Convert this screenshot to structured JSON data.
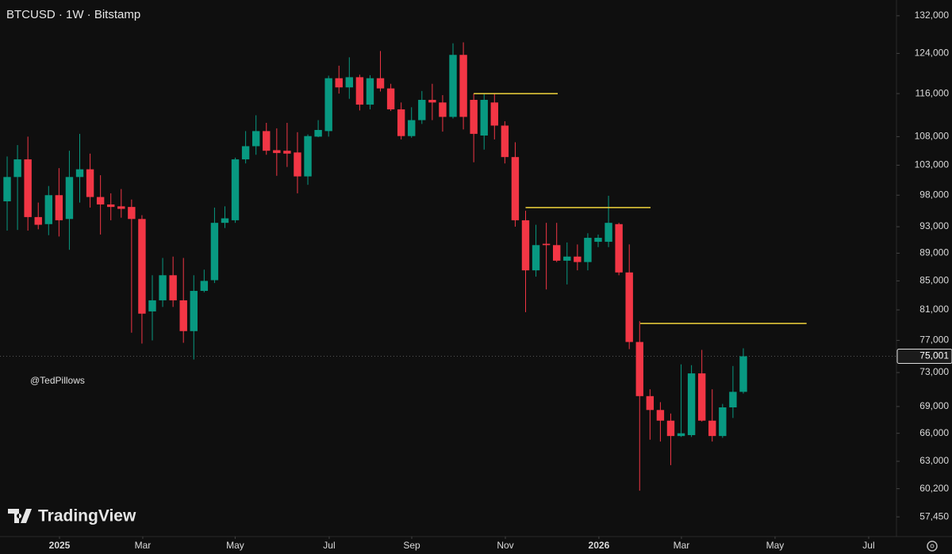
{
  "chart_data": {
    "type": "candlestick",
    "title": "BTCUSD · 1W · Bitstamp",
    "author": "@TedPillows",
    "logo_text": "TradingView",
    "log_scale": true,
    "up_color": "#089981",
    "down_color": "#f23645",
    "level_color": "#f0d43c",
    "categories": [
      null,
      null,
      null,
      null,
      null,
      null,
      null,
      null,
      null,
      null,
      null,
      null,
      null,
      null,
      null,
      null,
      null,
      null,
      null,
      null,
      null,
      null,
      null,
      null,
      null,
      null,
      null,
      null,
      null,
      null,
      null,
      null,
      null,
      null,
      null,
      null,
      null,
      null,
      null,
      null,
      null,
      null,
      null,
      null,
      null,
      null,
      null,
      null,
      null,
      null,
      null,
      null,
      null,
      null,
      null,
      null,
      null,
      null,
      null,
      null,
      null,
      null,
      null,
      null,
      null,
      null,
      null,
      null,
      null,
      null,
      null,
      null
    ],
    "open": [
      97000,
      101000,
      104000,
      94500,
      93400,
      98000,
      94200,
      101000,
      102300,
      97700,
      96500,
      96200,
      96100,
      94200,
      80800,
      82300,
      85800,
      82300,
      78200,
      83600,
      85100,
      93600,
      94000,
      104000,
      106300,
      109000,
      105600,
      105500,
      105200,
      101100,
      108000,
      109000,
      119000,
      117200,
      119200,
      113900,
      119000,
      117000,
      113000,
      108100,
      111000,
      114800,
      114300,
      111600,
      123700,
      114800,
      108200,
      114300,
      110000,
      104400,
      94000,
      86500,
      90400,
      90200,
      87900,
      88500,
      87700,
      90700,
      90700,
      93400,
      86200,
      76800,
      70200,
      68600,
      67400,
      65700,
      65800,
      72900,
      67400,
      65700,
      68900,
      70700
    ],
    "high": [
      104500,
      106500,
      108000,
      96800,
      99500,
      102500,
      105500,
      108500,
      105000,
      101300,
      98300,
      99000,
      97300,
      94800,
      85800,
      88300,
      88500,
      88300,
      85800,
      86600,
      96000,
      96200,
      104300,
      109000,
      111900,
      110500,
      109500,
      110500,
      108800,
      108400,
      111000,
      119500,
      121500,
      123200,
      119700,
      119600,
      124500,
      117900,
      114300,
      113400,
      116500,
      117900,
      115700,
      126100,
      126300,
      116000,
      116000,
      116000,
      110800,
      107000,
      95500,
      93300,
      93600,
      93600,
      90600,
      90300,
      92000,
      91800,
      97900,
      93600,
      90300,
      79500,
      71000,
      69500,
      68200,
      74000,
      73900,
      75800,
      71000,
      69300,
      73800,
      76000
    ],
    "low": [
      92400,
      92500,
      92400,
      92600,
      91700,
      91500,
      89500,
      96800,
      96000,
      91800,
      94000,
      94400,
      78000,
      76600,
      77000,
      81400,
      81400,
      76700,
      74600,
      83400,
      84700,
      92800,
      93600,
      103300,
      104800,
      104800,
      101200,
      102700,
      98300,
      99700,
      107900,
      108000,
      116000,
      115000,
      112800,
      113000,
      116400,
      112700,
      107500,
      107800,
      110300,
      111000,
      108900,
      111300,
      109300,
      103500,
      105700,
      107500,
      103300,
      93000,
      80700,
      85600,
      83800,
      87700,
      84500,
      86500,
      86500,
      89900,
      89900,
      85800,
      75900,
      60000,
      65300,
      65100,
      62600,
      65600,
      65600,
      67300,
      65100,
      65500,
      67700,
      70500
    ],
    "close": [
      101000,
      104000,
      94500,
      93300,
      98000,
      94000,
      101000,
      102300,
      97700,
      96500,
      96100,
      95800,
      94200,
      80500,
      82300,
      85800,
      82300,
      78200,
      83600,
      85000,
      93600,
      94300,
      104000,
      106300,
      109000,
      105500,
      105100,
      105000,
      101100,
      108100,
      109200,
      119000,
      117200,
      119200,
      113900,
      119000,
      117000,
      113000,
      108100,
      111000,
      114800,
      114300,
      111600,
      123700,
      111600,
      108500,
      114800,
      110000,
      104400,
      94000,
      86500,
      90200,
      90200,
      87900,
      88500,
      87700,
      91300,
      91300,
      93600,
      86200,
      76800,
      70200,
      68600,
      67400,
      65700,
      66000,
      72900,
      67400,
      65700,
      68900,
      70700,
      75001
    ],
    "levels": [
      {
        "value": 116000,
        "start": 45,
        "end": 53.1
      },
      {
        "value": 96000,
        "start": 50,
        "end": 62.05
      },
      {
        "value": 79200,
        "start": 61.06,
        "end": 77.1
      }
    ],
    "last_price": {
      "value": 75001,
      "label": "75,001"
    },
    "xlim": [
      -0.69,
      85.77
    ],
    "xticks": [
      {
        "value": 5.05,
        "label": "2025"
      },
      {
        "value": 13.08,
        "label": "Mar"
      },
      {
        "value": 21.99,
        "label": "May"
      },
      {
        "value": 31.06,
        "label": "Jul"
      },
      {
        "value": 39.02,
        "label": "Sep"
      },
      {
        "value": 48.05,
        "label": "Nov"
      },
      {
        "value": 57.07,
        "label": "2026"
      },
      {
        "value": 65.03,
        "label": "Mar"
      },
      {
        "value": 74.06,
        "label": "May"
      },
      {
        "value": 83.09,
        "label": "Jul"
      }
    ],
    "ylim": [
      55600,
      135500
    ],
    "yticks": [
      {
        "value": 57450,
        "label": "57,450"
      },
      {
        "value": 60200,
        "label": "60,200"
      },
      {
        "value": 63000,
        "label": "63,000"
      },
      {
        "value": 66000,
        "label": "66,000"
      },
      {
        "value": 69000,
        "label": "69,000"
      },
      {
        "value": 73000,
        "label": "73,000"
      },
      {
        "value": 77000,
        "label": "77,000"
      },
      {
        "value": 81000,
        "label": "81,000"
      },
      {
        "value": 85000,
        "label": "85,000"
      },
      {
        "value": 89000,
        "label": "89,000"
      },
      {
        "value": 93000,
        "label": "93,000"
      },
      {
        "value": 98000,
        "label": "98,000"
      },
      {
        "value": 103000,
        "label": "103,000"
      },
      {
        "value": 108000,
        "label": "108,000"
      },
      {
        "value": 116000,
        "label": "116,000"
      },
      {
        "value": 124000,
        "label": "124,000"
      },
      {
        "value": 132000,
        "label": "132,000"
      }
    ]
  }
}
